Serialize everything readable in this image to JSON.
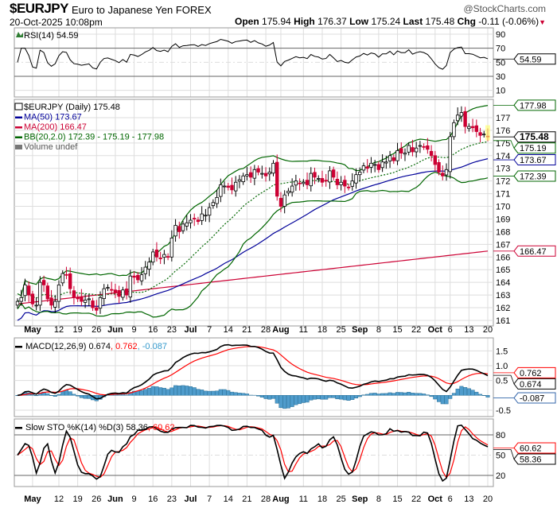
{
  "header": {
    "symbol": "$EURJPY",
    "name": "Euro to Japanese Yen",
    "exchange": "FOREX",
    "datetime": "20-Oct-2025 10:08pm",
    "copyright": "@StockCharts.com",
    "open_label": "Open",
    "open": "175.94",
    "high_label": "High",
    "high": "176.37",
    "low_label": "Low",
    "low": "175.24",
    "last_label": "Last",
    "last": "175.48",
    "chg_label": "Chg",
    "chg": "-0.11 (-0.06%)",
    "chg_dir": "down"
  },
  "colors": {
    "up": "#ffffff",
    "down": "#cc0033",
    "ma50": "#000099",
    "ma200": "#cc0033",
    "bb": "#006600",
    "macd": "#000000",
    "signal": "#ff0000",
    "hist": "#4f9ccc",
    "stoK": "#000000",
    "stoD": "#ff0000",
    "grid": "#dddddd"
  },
  "chart_data": [
    {
      "type": "line",
      "panel": "rsi",
      "legend": "RSI(14) 54.59",
      "value_tag": "54.59",
      "yticks": [
        10,
        30,
        50,
        70,
        90
      ],
      "ylim": [
        8,
        96
      ]
    },
    {
      "type": "candlestick",
      "panel": "price",
      "legend": [
        "$EURJPY (Daily) 175.48",
        "MA(50) 173.67",
        "MA(200) 166.47",
        "BB(20,2.0) 172.39 - 175.19 - 177.98",
        "Volume undef"
      ],
      "tags": {
        "last": "175.48",
        "bb_upper": "177.98",
        "ma50": "173.67",
        "bb_lower": "172.39",
        "ma200": "166.47"
      },
      "yticks": [
        161,
        162,
        163,
        164,
        165,
        166,
        167,
        168,
        169,
        170,
        171,
        172,
        173,
        174,
        175,
        176,
        177
      ],
      "ylim": [
        160.5,
        178.5
      ],
      "closes": [
        162.5,
        162.8,
        163.8,
        163.0,
        162.3,
        162.2,
        164.0,
        163.8,
        162.7,
        162.2,
        162.5,
        163.8,
        164.7,
        164.6,
        163.5,
        162.8,
        162.7,
        162.5,
        162.6,
        162.7,
        162.0,
        161.8,
        162.8,
        163.5,
        163.6,
        163.4,
        163.2,
        162.9,
        163.4,
        163.0,
        164.5,
        164.4,
        164.2,
        164.6,
        165.2,
        165.6,
        166.4,
        166.0,
        165.9,
        166.2,
        166.0,
        167.5,
        168.5,
        168.0,
        168.6,
        168.7,
        168.9,
        169.0,
        168.8,
        169.4,
        169.3,
        169.9,
        170.3,
        170.7,
        171.7,
        171.6,
        171.5,
        171.3,
        171.9,
        172.1,
        172.4,
        172.5,
        172.3,
        172.9,
        172.7,
        172.6,
        172.4,
        172.7,
        173.4,
        170.8,
        170.0,
        170.9,
        171.2,
        171.6,
        172.0,
        171.8,
        171.9,
        171.7,
        172.6,
        172.3,
        172.2,
        171.9,
        172.0,
        172.8,
        172.3,
        171.7,
        171.9,
        171.6,
        171.5,
        172.0,
        172.5,
        172.7,
        173.2,
        173.0,
        173.4,
        173.3,
        172.9,
        173.5,
        173.5,
        174.0,
        173.6,
        174.4,
        174.2,
        174.2,
        174.8,
        174.3,
        174.6,
        174.8,
        174.7,
        174.5,
        174.0,
        173.3,
        172.7,
        172.4,
        172.9,
        175.5,
        176.6,
        177.2,
        177.4,
        176.3,
        176.3,
        176.2,
        175.9,
        175.6,
        175.7,
        175.48
      ],
      "ma200_range": [
        162.3,
        166.47
      ]
    },
    {
      "type": "line",
      "panel": "macd",
      "legend": {
        "label": "MACD(12,26,9) 0.674",
        "signal": ", 0.762",
        "hist": ", -0.087"
      },
      "tags": {
        "macd": "0.674",
        "signal": "0.762",
        "hist": "-0.087"
      },
      "yticks": [
        -0.5,
        0.5,
        1.0,
        1.5
      ],
      "ylim": [
        -0.7,
        1.9
      ]
    },
    {
      "type": "line",
      "panel": "sto",
      "legend": {
        "label": "Slow STO %K(14) %D(3) 58.36",
        "d": ", 60.62"
      },
      "tags": {
        "k": "58.36",
        "d": "60.62"
      },
      "yticks": [
        20,
        50,
        80
      ],
      "ylim": [
        5,
        105
      ]
    }
  ],
  "xticks": [
    "May",
    "12",
    "19",
    "26",
    "Jun",
    "9",
    "16",
    "23",
    "Jul",
    "7",
    "14",
    "21",
    "28",
    "Aug",
    "11",
    "18",
    "25",
    "Sep",
    "8",
    "15",
    "22",
    "Oct",
    "6",
    "13",
    "20"
  ]
}
